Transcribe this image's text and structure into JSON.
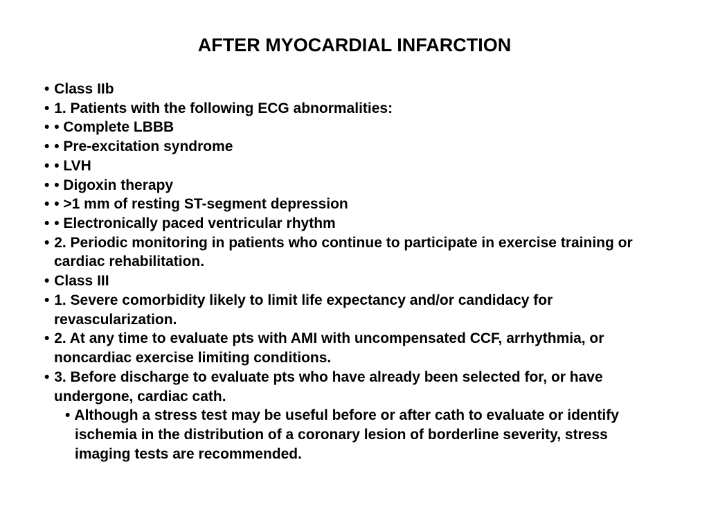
{
  "title": "AFTER MYOCARDIAL INFARCTION",
  "font": {
    "family": "Arial",
    "title_size_pt": 27,
    "body_size_pt": 21,
    "weight": "bold"
  },
  "colors": {
    "background": "#ffffff",
    "text": "#000000"
  },
  "bullets": [
    {
      "marker": "•",
      "text": "Class IIb",
      "indent": false
    },
    {
      "marker": "•",
      "text": "1. Patients with the following ECG abnormalities:",
      "indent": false
    },
    {
      "marker": "•",
      "text": "• Complete LBBB",
      "indent": false
    },
    {
      "marker": "•",
      "text": "• Pre-excitation syndrome",
      "indent": false
    },
    {
      "marker": "•",
      "text": "• LVH",
      "indent": false
    },
    {
      "marker": "•",
      "text": "• Digoxin therapy",
      "indent": false
    },
    {
      "marker": "•",
      "text": "• >1 mm of resting ST-segment depression",
      "indent": false
    },
    {
      "marker": "•",
      "text": "• Electronically paced ventricular rhythm",
      "indent": false
    },
    {
      "marker": "•",
      "text": "2. Periodic monitoring in patients who continue to participate in exercise training or cardiac rehabilitation.",
      "indent": false
    },
    {
      "marker": "•",
      "text": "Class III",
      "indent": false
    },
    {
      "marker": "•",
      "text": "1. Severe comorbidity likely to limit life expectancy and/or candidacy for revascularization.",
      "indent": false
    },
    {
      "marker": "•",
      "text": "2. At any time to evaluate pts with AMI with uncompensated CCF, arrhythmia, or noncardiac exercise limiting conditions.",
      "indent": false
    },
    {
      "marker": "•",
      "text": "3. Before discharge to evaluate pts who have already been selected for, or have undergone, cardiac  cath.",
      "indent": false
    },
    {
      "marker": "•",
      "text": "Although a stress test may be useful  before or after cath to evaluate or identify  ischemia in the distribution of a coronary lesion of  borderline severity, stress imaging tests are recommended.",
      "indent": true
    }
  ]
}
